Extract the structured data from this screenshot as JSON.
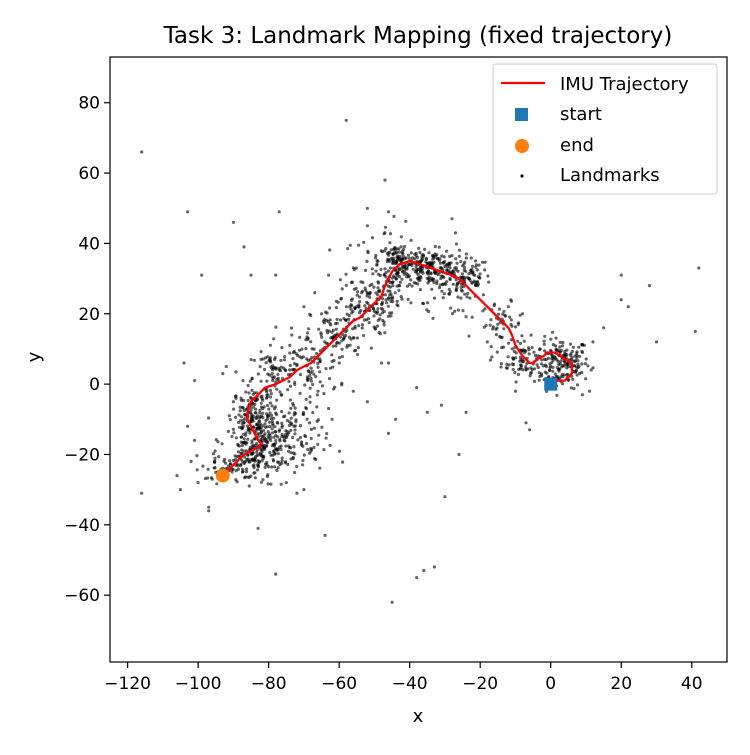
{
  "chart_data": {
    "type": "scatter",
    "title": "Task 3: Landmark Mapping (fixed trajectory)",
    "xlabel": "x",
    "ylabel": "y",
    "xlim": [
      -125,
      50
    ],
    "ylim": [
      -79,
      93
    ],
    "xticks": [
      -120,
      -100,
      -80,
      -60,
      -40,
      -20,
      0,
      20,
      40
    ],
    "yticks": [
      -60,
      -40,
      -20,
      0,
      20,
      40,
      60,
      80
    ],
    "xtick_labels": [
      "−120",
      "−100",
      "−80",
      "−60",
      "−40",
      "−20",
      "0",
      "20",
      "40"
    ],
    "ytick_labels": [
      "−60",
      "−40",
      "−20",
      "0",
      "20",
      "40",
      "60",
      "80"
    ],
    "grid": false,
    "legend_position": "top-right",
    "colors": {
      "trajectory": "#ff0000",
      "start": "#1f77b4",
      "end": "#ff7f0e",
      "landmarks": "#000000"
    },
    "series": [
      {
        "name": "IMU Trajectory",
        "type": "line",
        "points": [
          [
            0,
            0
          ],
          [
            2,
            1
          ],
          [
            4,
            1
          ],
          [
            6,
            3
          ],
          [
            6,
            6
          ],
          [
            4,
            7
          ],
          [
            3,
            8
          ],
          [
            1,
            9
          ],
          [
            -1,
            9
          ],
          [
            -2,
            8
          ],
          [
            -4,
            7
          ],
          [
            -5,
            6
          ],
          [
            -6,
            6
          ],
          [
            -8,
            8
          ],
          [
            -10,
            11
          ],
          [
            -11,
            14
          ],
          [
            -12,
            16
          ],
          [
            -14,
            18
          ],
          [
            -16,
            20
          ],
          [
            -18,
            22
          ],
          [
            -20,
            24
          ],
          [
            -22,
            26
          ],
          [
            -24,
            28
          ],
          [
            -26,
            30
          ],
          [
            -28,
            31
          ],
          [
            -31,
            32
          ],
          [
            -34,
            33
          ],
          [
            -37,
            34
          ],
          [
            -40,
            35
          ],
          [
            -43,
            34
          ],
          [
            -45,
            32
          ],
          [
            -46,
            30
          ],
          [
            -47,
            28
          ],
          [
            -48,
            25
          ],
          [
            -50,
            23
          ],
          [
            -52,
            21
          ],
          [
            -54,
            19
          ],
          [
            -56,
            18
          ],
          [
            -58,
            16
          ],
          [
            -60,
            14
          ],
          [
            -62,
            12
          ],
          [
            -64,
            10
          ],
          [
            -66,
            8
          ],
          [
            -68,
            6
          ],
          [
            -70,
            5
          ],
          [
            -72,
            4
          ],
          [
            -74,
            2
          ],
          [
            -76,
            1
          ],
          [
            -78,
            0
          ],
          [
            -81,
            -1
          ],
          [
            -83,
            -3
          ],
          [
            -85,
            -5
          ],
          [
            -86,
            -8
          ],
          [
            -86,
            -10
          ],
          [
            -85,
            -12
          ],
          [
            -84,
            -14
          ],
          [
            -83,
            -16
          ],
          [
            -82,
            -17
          ],
          [
            -83,
            -18
          ],
          [
            -85,
            -19
          ],
          [
            -87,
            -20
          ],
          [
            -89,
            -22
          ],
          [
            -91,
            -24
          ],
          [
            -93,
            -26
          ]
        ]
      },
      {
        "name": "start",
        "type": "marker",
        "marker": "square",
        "points": [
          [
            0,
            0
          ]
        ]
      },
      {
        "name": "end",
        "type": "marker",
        "marker": "circle",
        "points": [
          [
            -93,
            -26
          ]
        ]
      },
      {
        "name": "Landmarks",
        "type": "scatter",
        "approximate_count": 1800,
        "outliers": [
          [
            -116,
            66
          ],
          [
            -58,
            75
          ],
          [
            -47,
            58
          ],
          [
            -103,
            49
          ],
          [
            -90,
            46
          ],
          [
            -77,
            49
          ],
          [
            -87,
            39
          ],
          [
            -99,
            31
          ],
          [
            -85,
            31
          ],
          [
            -78,
            31
          ],
          [
            -63,
            31
          ],
          [
            -52,
            45
          ],
          [
            -52,
            50
          ],
          [
            -46,
            49
          ],
          [
            -28,
            47
          ],
          [
            -27,
            43
          ],
          [
            -103,
            -12
          ],
          [
            -101,
            -16
          ],
          [
            -106,
            -26
          ],
          [
            -100,
            -28
          ],
          [
            -97,
            -35
          ],
          [
            -97,
            -36
          ],
          [
            -83,
            -41
          ],
          [
            -78,
            -54
          ],
          [
            -64,
            -43
          ],
          [
            -38,
            -55
          ],
          [
            -36,
            -53
          ],
          [
            -33,
            -52
          ],
          [
            -45,
            -62
          ],
          [
            -30,
            -32
          ],
          [
            -26,
            -20
          ],
          [
            -24,
            -8
          ],
          [
            -31,
            -6
          ],
          [
            -35,
            -8
          ],
          [
            -38,
            -1
          ],
          [
            -46,
            6
          ],
          [
            -48,
            6
          ],
          [
            -116,
            -31
          ],
          [
            -101,
            1
          ],
          [
            -104,
            6
          ],
          [
            -92,
            5
          ],
          [
            -93,
            3
          ],
          [
            20,
            31
          ],
          [
            28,
            28
          ],
          [
            20,
            24
          ],
          [
            22,
            22
          ],
          [
            41,
            15
          ],
          [
            42,
            33
          ],
          [
            30,
            12
          ],
          [
            15,
            16
          ],
          [
            12,
            12
          ],
          [
            11,
            -2
          ],
          [
            9,
            -3
          ],
          [
            -7,
            -11
          ],
          [
            -6,
            -13
          ],
          [
            -10,
            -2
          ],
          [
            -8,
            20
          ],
          [
            -12,
            22
          ],
          [
            -18,
            12
          ],
          [
            -15,
            17
          ],
          [
            -46,
            -14
          ],
          [
            -44,
            -10
          ],
          [
            -52,
            -5
          ],
          [
            -56,
            -2
          ],
          [
            -60,
            6
          ],
          [
            -66,
            -2
          ],
          [
            -62,
            -10
          ],
          [
            -70,
            -30
          ],
          [
            -72,
            -31
          ],
          [
            -75,
            -28
          ],
          [
            -96,
            -27
          ],
          [
            -90,
            -5
          ],
          [
            -87,
            -11
          ],
          [
            -102,
            -22
          ],
          [
            -105,
            -30
          ],
          [
            -57,
            22
          ],
          [
            -65,
            20
          ],
          [
            -70,
            22
          ],
          [
            -74,
            11
          ]
        ],
        "clusters": [
          {
            "center": [
              3,
              6
            ],
            "spread": [
              4,
              3.5
            ],
            "count": 190
          },
          {
            "center": [
              -8,
              7
            ],
            "spread": [
              3,
              3
            ],
            "count": 70
          },
          {
            "center": [
              -14,
              17
            ],
            "spread": [
              3,
              3
            ],
            "count": 45
          },
          {
            "center": [
              -25,
              30
            ],
            "spread": [
              4,
              3
            ],
            "count": 110
          },
          {
            "center": [
              -34,
              33
            ],
            "spread": [
              4,
              2.5
            ],
            "count": 160
          },
          {
            "center": [
              -43,
              35
            ],
            "spread": [
              3,
              2.5
            ],
            "count": 90
          },
          {
            "center": [
              -46,
              28
            ],
            "spread": [
              2.5,
              4
            ],
            "count": 60
          },
          {
            "center": [
              -53,
              22
            ],
            "spread": [
              4,
              4
            ],
            "count": 110
          },
          {
            "center": [
              -60,
              14
            ],
            "spread": [
              4,
              4
            ],
            "count": 80
          },
          {
            "center": [
              -70,
              5
            ],
            "spread": [
              5,
              5
            ],
            "count": 120
          },
          {
            "center": [
              -78,
              3
            ],
            "spread": [
              3,
              3
            ],
            "count": 50
          },
          {
            "center": [
              -84,
              -8
            ],
            "spread": [
              3,
              4
            ],
            "count": 120
          },
          {
            "center": [
              -82,
              -16
            ],
            "spread": [
              5,
              5
            ],
            "count": 240
          },
          {
            "center": [
              -86,
              -22
            ],
            "spread": [
              4,
              3
            ],
            "count": 70
          },
          {
            "center": [
              -73,
              -17
            ],
            "spread": [
              5,
              5
            ],
            "count": 80
          },
          {
            "center": [
              -93,
              -24
            ],
            "spread": [
              3,
              2
            ],
            "count": 35
          },
          {
            "center": [
              -47,
              35
            ],
            "spread": [
              6,
              6
            ],
            "count": 60
          },
          {
            "center": [
              -30,
              25
            ],
            "spread": [
              6,
              6
            ],
            "count": 30
          }
        ]
      }
    ],
    "legend_entries": [
      {
        "label": "IMU Trajectory"
      },
      {
        "label": "start"
      },
      {
        "label": "end"
      },
      {
        "label": "Landmarks"
      }
    ]
  }
}
